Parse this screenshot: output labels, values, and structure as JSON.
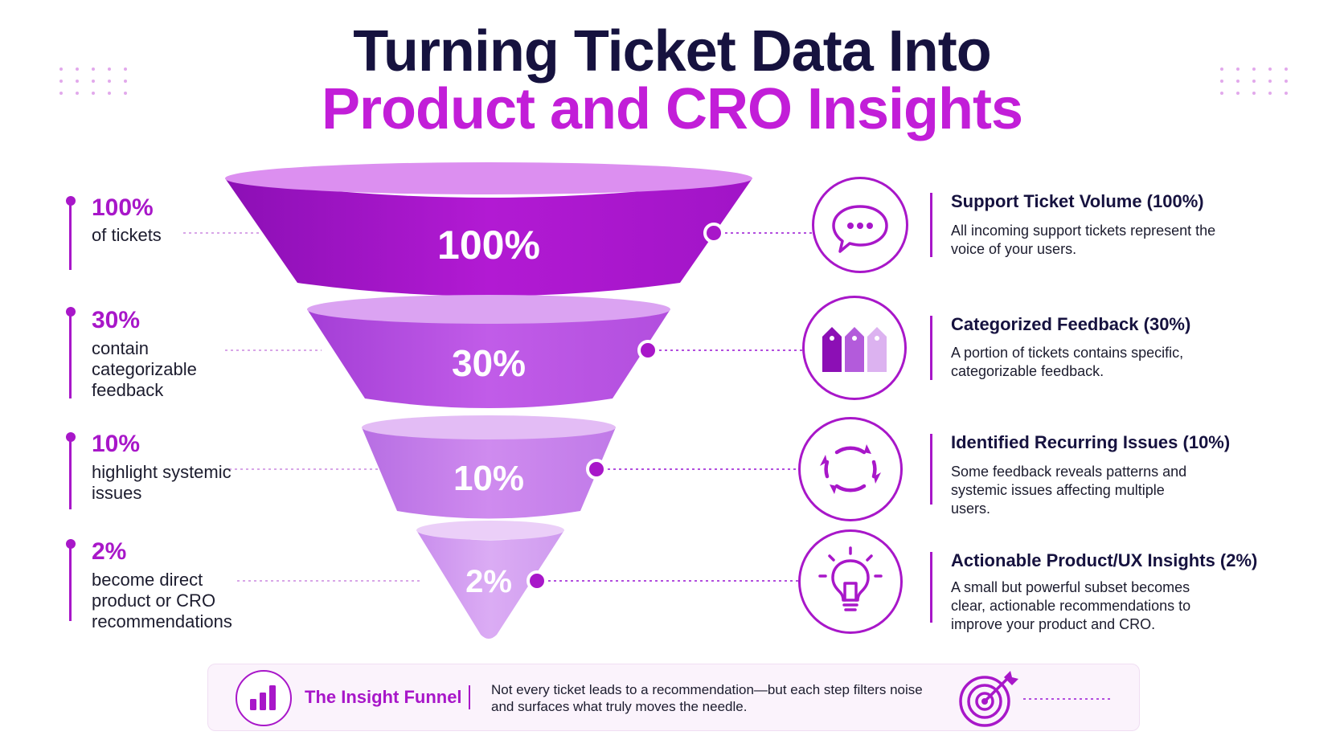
{
  "title": {
    "line1": "Turning Ticket Data Into",
    "line2": "Product and CRO Insights"
  },
  "stages": [
    {
      "percent": "100%",
      "left_desc": "of tickets",
      "title": "Support Ticket Volume (100%)",
      "desc": "All incoming support tickets represent the voice of your users.",
      "icon": "speech-bubble-icon",
      "value": 100
    },
    {
      "percent": "30%",
      "left_desc": "contain categorizable feedback",
      "title": "Categorized Feedback (30%)",
      "desc": "A portion of tickets contains specific, categorizable feedback.",
      "icon": "tags-icon",
      "value": 30
    },
    {
      "percent": "10%",
      "left_desc": "highlight systemic issues",
      "title": "Identified Recurring Issues (10%)",
      "desc": "Some feedback reveals patterns and systemic issues affecting multiple users.",
      "icon": "recurring-cycle-icon",
      "value": 10
    },
    {
      "percent": "2%",
      "left_desc": "become direct product or CRO recommendations",
      "title": "Actionable Product/UX Insights (2%)",
      "desc": "A small but powerful subset becomes clear, actionable recommendations to improve your product and CRO.",
      "icon": "lightbulb-icon",
      "value": 2
    }
  ],
  "banner": {
    "label": "The Insight Funnel",
    "text": "Not every ticket leads to a recommendation—but each step filters noise and surfaces what truly moves the needle.",
    "left_icon": "bar-chart-icon",
    "right_icon": "target-icon"
  },
  "colors": {
    "title_dark": "#16123f",
    "title_accent": "#c21ed8",
    "accent": "#a817c9",
    "stage1": "#a817c9",
    "stage2": "#b94fe0",
    "stage3": "#c67ce6",
    "stage4": "#d49df0"
  }
}
